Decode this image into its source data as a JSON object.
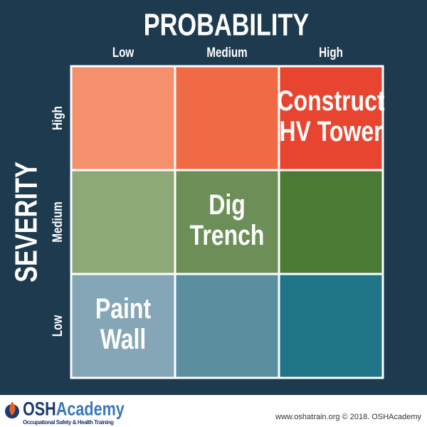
{
  "title": "PROBABILITY",
  "y_title": "SEVERITY",
  "columns": [
    "Low",
    "Medium",
    "High"
  ],
  "rows": [
    {
      "label": "High",
      "cells": [
        {
          "color": "#f4916c"
        },
        {
          "color": "#f06b45"
        },
        {
          "color": "#e84530",
          "lines": [
            "Construct",
            "HV Tower"
          ]
        }
      ]
    },
    {
      "label": "Medium",
      "cells": [
        {
          "color": "#8fa878"
        },
        {
          "color": "#6b8f56",
          "lines": [
            "Dig",
            "Trench"
          ]
        },
        {
          "color": "#4b7a35"
        }
      ]
    },
    {
      "label": "Low",
      "cells": [
        {
          "color": "#84a6b7",
          "lines": [
            "Paint",
            "Wall"
          ]
        },
        {
          "color": "#5b8fa0"
        },
        {
          "color": "#1f7488"
        }
      ]
    }
  ],
  "footer": {
    "logo": {
      "part1": "OSH",
      "part2": "Academy"
    },
    "tagline": "Occupational Safety & Health Training",
    "credit": "www.oshatrain.org © 2018. OSHAcademy"
  }
}
